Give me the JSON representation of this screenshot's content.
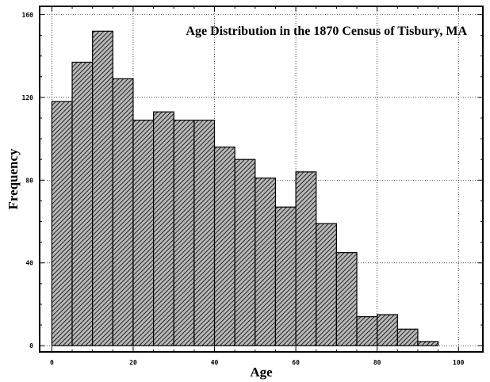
{
  "chart_data": {
    "type": "bar",
    "title": "Age Distribution in the 1870 Census of Tisbury, MA",
    "xlabel": "Age",
    "ylabel": "Frequency",
    "bin_width": 5,
    "bins": [
      {
        "start": 0,
        "end": 5,
        "value": 118
      },
      {
        "start": 5,
        "end": 10,
        "value": 137
      },
      {
        "start": 10,
        "end": 15,
        "value": 152
      },
      {
        "start": 15,
        "end": 20,
        "value": 129
      },
      {
        "start": 20,
        "end": 25,
        "value": 109
      },
      {
        "start": 25,
        "end": 30,
        "value": 113
      },
      {
        "start": 30,
        "end": 35,
        "value": 109
      },
      {
        "start": 35,
        "end": 40,
        "value": 109
      },
      {
        "start": 40,
        "end": 45,
        "value": 96
      },
      {
        "start": 45,
        "end": 50,
        "value": 90
      },
      {
        "start": 50,
        "end": 55,
        "value": 81
      },
      {
        "start": 55,
        "end": 60,
        "value": 67
      },
      {
        "start": 60,
        "end": 65,
        "value": 84
      },
      {
        "start": 65,
        "end": 70,
        "value": 59
      },
      {
        "start": 70,
        "end": 75,
        "value": 45
      },
      {
        "start": 75,
        "end": 80,
        "value": 14
      },
      {
        "start": 80,
        "end": 85,
        "value": 15
      },
      {
        "start": 85,
        "end": 90,
        "value": 8
      },
      {
        "start": 90,
        "end": 95,
        "value": 2
      }
    ],
    "xlim": [
      -3,
      106
    ],
    "ylim": [
      -3,
      164
    ],
    "xticks": [
      0,
      20,
      40,
      60,
      80,
      100
    ],
    "yticks": [
      0,
      40,
      80,
      120,
      160
    ],
    "grid": true,
    "bar_fill": "hatched-gray",
    "colors": {
      "background": "#ffffff",
      "bar_edge": "#000000",
      "grid": "#000000"
    }
  }
}
